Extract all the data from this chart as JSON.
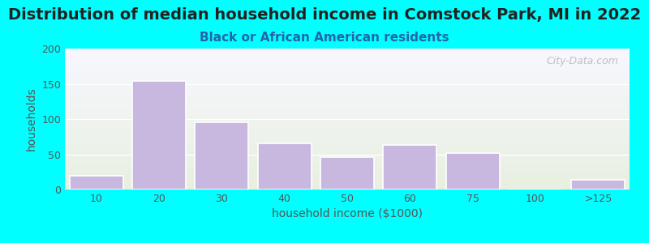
{
  "title": "Distribution of median household income in Comstock Park, MI in 2022",
  "subtitle": "Black or African American residents",
  "xlabel": "household income ($1000)",
  "ylabel": "households",
  "bar_labels": [
    "10",
    "20",
    "30",
    "40",
    "50",
    "60",
    "75",
    "100",
    ">125"
  ],
  "bar_values": [
    20,
    154,
    95,
    65,
    46,
    63,
    52,
    0,
    14
  ],
  "bar_positions": [
    0,
    1,
    2,
    3,
    4,
    5,
    6,
    7,
    8
  ],
  "bar_color": "#c8b8e0",
  "bar_edge_color": "#ffffff",
  "ylim": [
    0,
    200
  ],
  "yticks": [
    0,
    50,
    100,
    150,
    200
  ],
  "bg_outer": "#00ffff",
  "bg_grad_top": "#e8f0e0",
  "bg_grad_bottom": "#f8f8ff",
  "title_color": "#222222",
  "subtitle_color": "#2266aa",
  "axis_label_color": "#555555",
  "tick_label_color": "#555555",
  "watermark": "City-Data.com",
  "title_fontsize": 14,
  "subtitle_fontsize": 11,
  "axis_label_fontsize": 10
}
